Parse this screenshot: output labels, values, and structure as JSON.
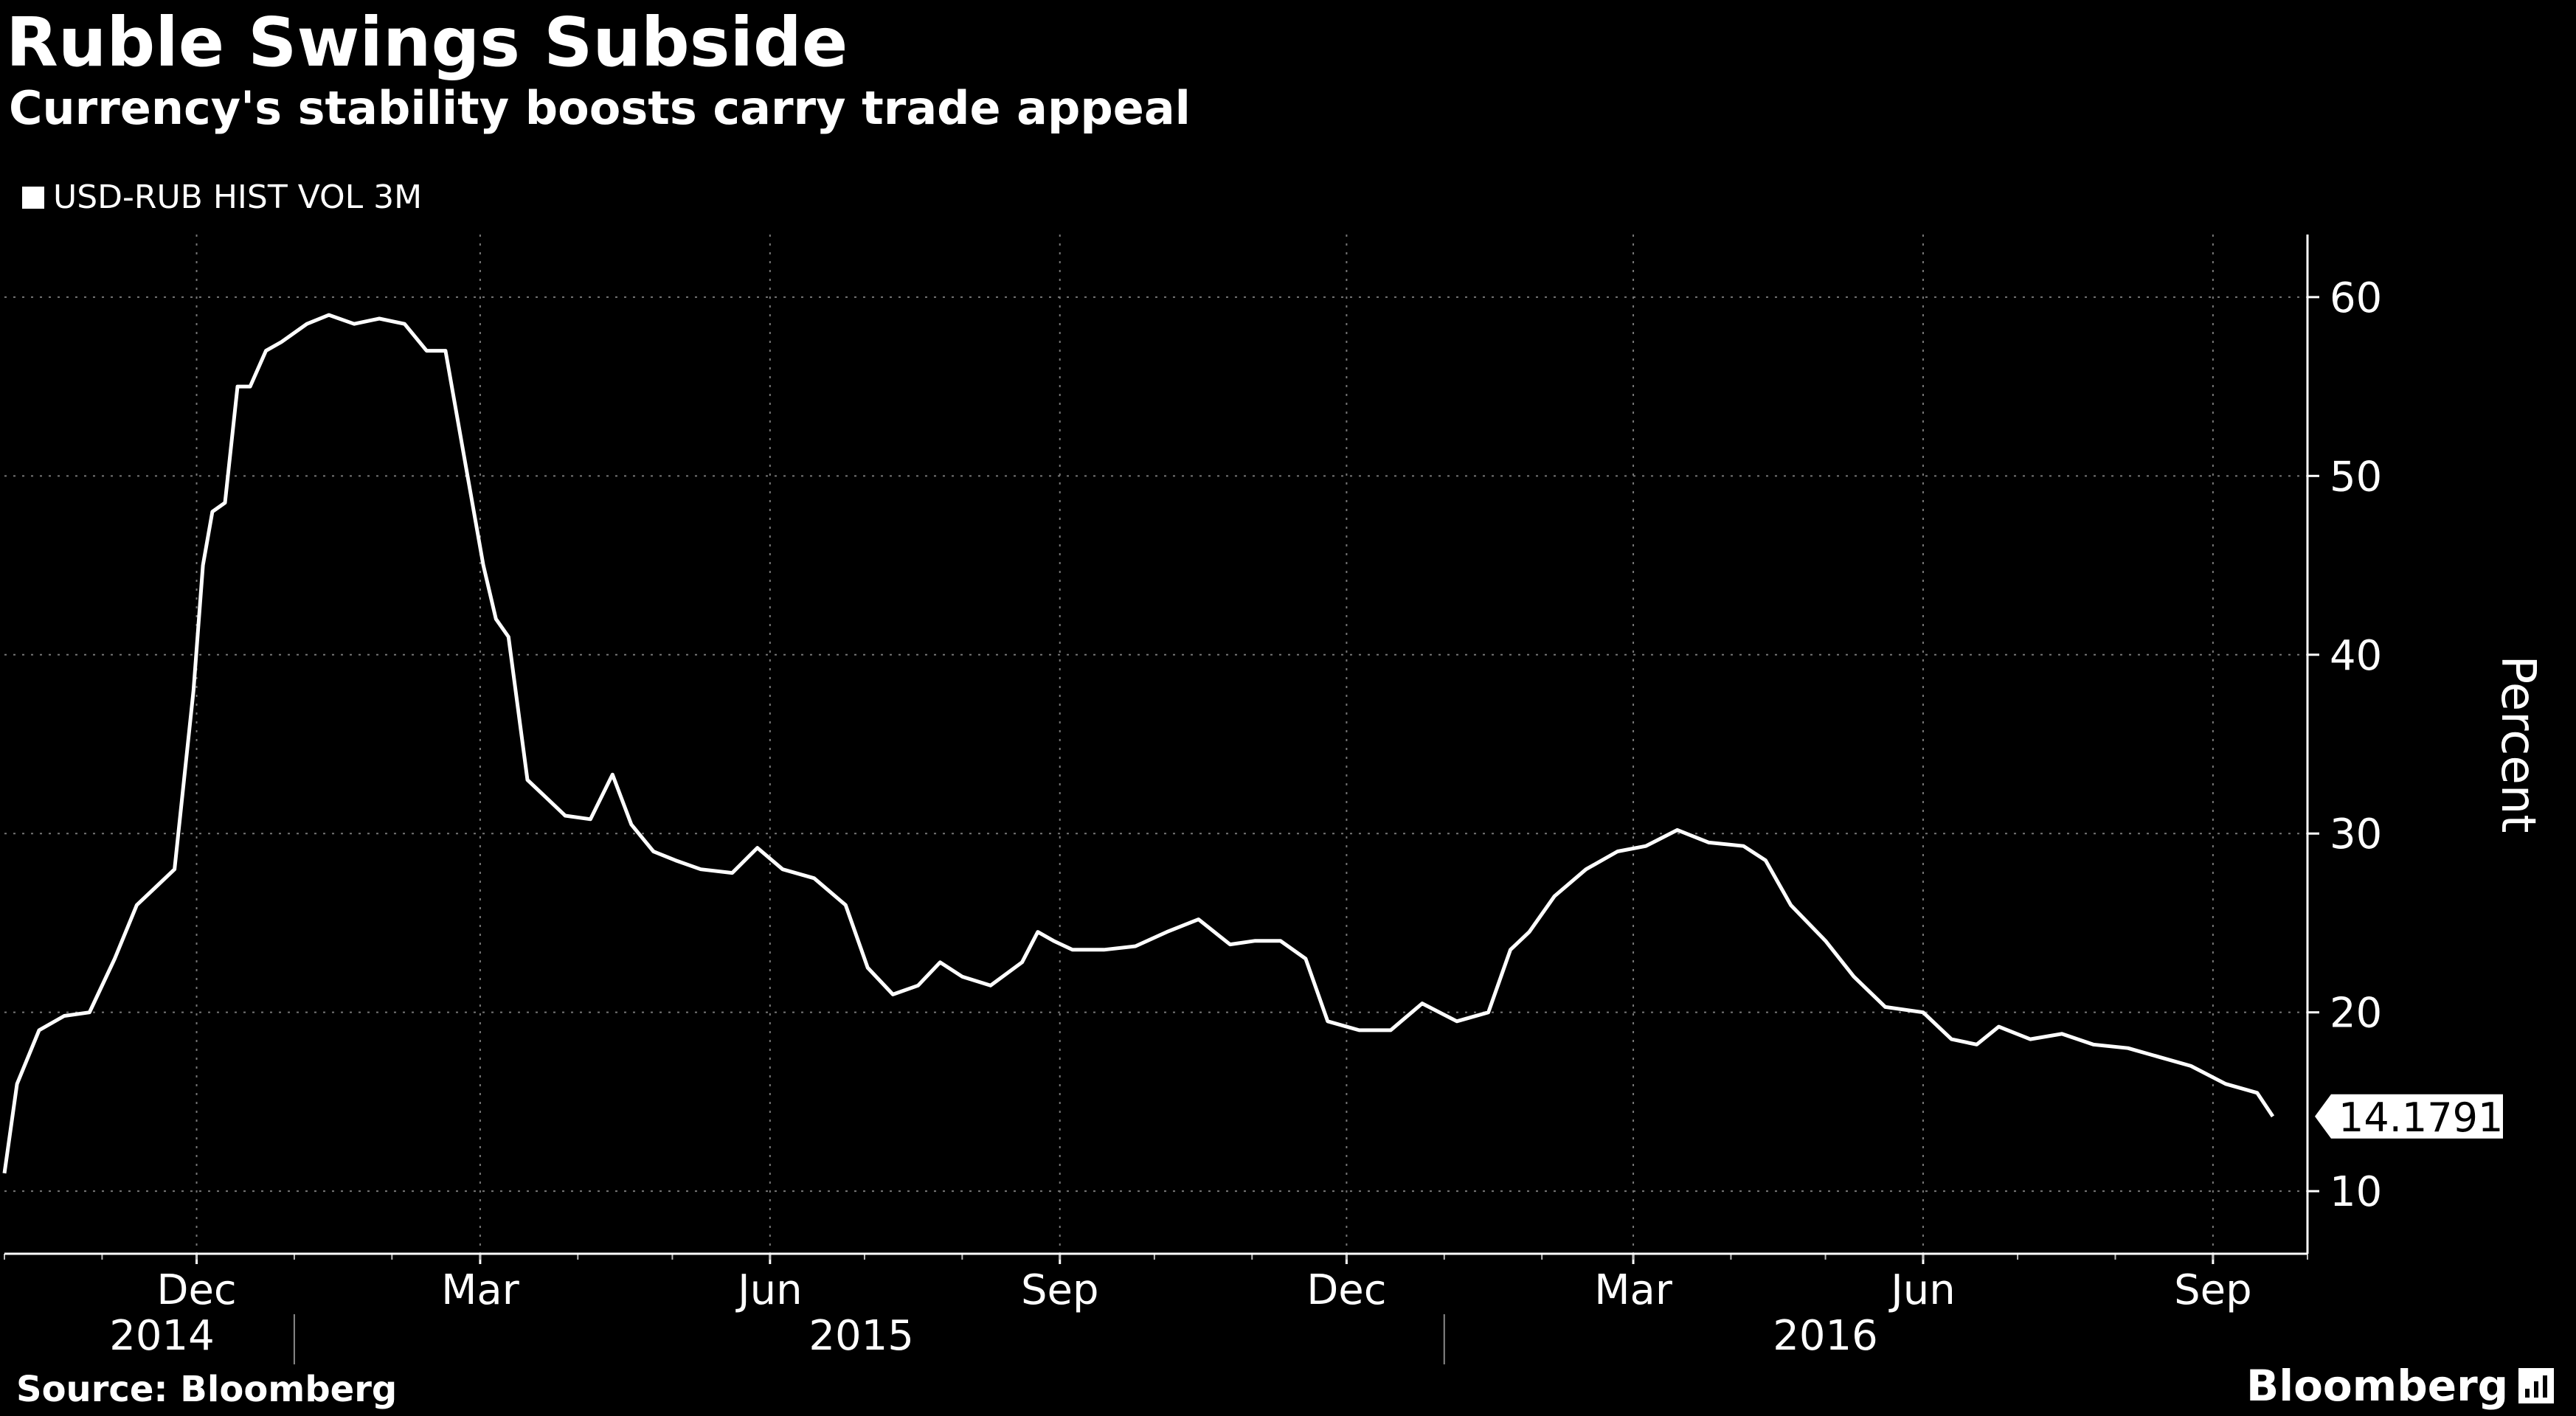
{
  "header": {
    "title": "Ruble Swings Subside",
    "subtitle": "Currency's stability boosts carry trade appeal"
  },
  "legend": {
    "label": "USD-RUB HIST VOL 3M"
  },
  "footer": {
    "source": "Source: Bloomberg",
    "logo": "Bloomberg"
  },
  "colors": {
    "background": "#000000",
    "line": "#ffffff",
    "grid": "#777777"
  },
  "chart_data": {
    "type": "line",
    "title": "Ruble Swings Subside",
    "subtitle": "Currency's stability boosts carry trade appeal",
    "ylabel": "Percent",
    "ylim": [
      6.5,
      63.5
    ],
    "yticks": [
      10,
      20,
      30,
      40,
      50,
      60
    ],
    "x_range": [
      "2014-10-01",
      "2016-10-01"
    ],
    "x_ticks": [
      {
        "label": "Dec",
        "date": "2014-12-01"
      },
      {
        "label": "Mar",
        "date": "2015-03-01"
      },
      {
        "label": "Jun",
        "date": "2015-06-01"
      },
      {
        "label": "Sep",
        "date": "2015-09-01"
      },
      {
        "label": "Dec",
        "date": "2015-12-01"
      },
      {
        "label": "Mar",
        "date": "2016-03-01"
      },
      {
        "label": "Jun",
        "date": "2016-06-01"
      },
      {
        "label": "Sep",
        "date": "2016-09-01"
      }
    ],
    "year_labels": [
      {
        "label": "2014",
        "date": "2014-11-20"
      },
      {
        "label": "2015",
        "date": "2015-06-30"
      },
      {
        "label": "2016",
        "date": "2016-05-01"
      }
    ],
    "year_dividers": [
      "2015-01-01",
      "2016-01-01"
    ],
    "grid": true,
    "legend_position": "top-left",
    "last_value_label": "14.1791",
    "series": [
      {
        "name": "USD-RUB HIST VOL 3M",
        "x": [
          "2014-10-01",
          "2014-10-05",
          "2014-10-12",
          "2014-10-20",
          "2014-10-28",
          "2014-11-05",
          "2014-11-12",
          "2014-11-18",
          "2014-11-24",
          "2014-11-30",
          "2014-12-03",
          "2014-12-06",
          "2014-12-10",
          "2014-12-14",
          "2014-12-18",
          "2014-12-23",
          "2014-12-28",
          "2015-01-05",
          "2015-01-12",
          "2015-01-20",
          "2015-01-28",
          "2015-02-05",
          "2015-02-12",
          "2015-02-18",
          "2015-02-25",
          "2015-03-02",
          "2015-03-06",
          "2015-03-10",
          "2015-03-16",
          "2015-03-22",
          "2015-03-28",
          "2015-04-05",
          "2015-04-12",
          "2015-04-18",
          "2015-04-25",
          "2015-05-02",
          "2015-05-10",
          "2015-05-20",
          "2015-05-28",
          "2015-06-05",
          "2015-06-15",
          "2015-06-25",
          "2015-07-02",
          "2015-07-10",
          "2015-07-18",
          "2015-07-25",
          "2015-08-01",
          "2015-08-10",
          "2015-08-20",
          "2015-08-25",
          "2015-08-30",
          "2015-09-05",
          "2015-09-15",
          "2015-09-25",
          "2015-10-05",
          "2015-10-15",
          "2015-10-25",
          "2015-11-02",
          "2015-11-10",
          "2015-11-18",
          "2015-11-25",
          "2015-12-05",
          "2015-12-15",
          "2015-12-25",
          "2016-01-05",
          "2016-01-15",
          "2016-01-22",
          "2016-01-28",
          "2016-02-05",
          "2016-02-15",
          "2016-02-25",
          "2016-03-05",
          "2016-03-15",
          "2016-03-25",
          "2016-04-05",
          "2016-04-12",
          "2016-04-20",
          "2016-05-01",
          "2016-05-10",
          "2016-05-20",
          "2016-06-01",
          "2016-06-10",
          "2016-06-18",
          "2016-06-25",
          "2016-07-05",
          "2016-07-15",
          "2016-07-25",
          "2016-08-05",
          "2016-08-15",
          "2016-08-25",
          "2016-09-05",
          "2016-09-15",
          "2016-09-20"
        ],
        "values": [
          11,
          16,
          19,
          19.8,
          20,
          23,
          26,
          27,
          28,
          38,
          45,
          48,
          48.5,
          55,
          55,
          57,
          57.5,
          58.5,
          59,
          58.5,
          58.8,
          58.5,
          57,
          57,
          50,
          45,
          42,
          41,
          33,
          32,
          31,
          30.8,
          33.3,
          30.5,
          29,
          28.5,
          28,
          27.8,
          29.2,
          28,
          27.5,
          26,
          22.5,
          21,
          21.5,
          22.8,
          22,
          21.5,
          22.8,
          24.5,
          24,
          23.5,
          23.5,
          23.7,
          24.5,
          25.2,
          23.8,
          24,
          24,
          23,
          19.5,
          19,
          19,
          20.5,
          19.5,
          20,
          23.5,
          24.5,
          26.5,
          28,
          29,
          29.3,
          30.2,
          29.5,
          29.3,
          28.5,
          26,
          24,
          22,
          20.3,
          20,
          18.5,
          18.2,
          19.2,
          18.5,
          18.8,
          18.2,
          18,
          17.5,
          17,
          16,
          15.5,
          14.18
        ]
      }
    ]
  }
}
